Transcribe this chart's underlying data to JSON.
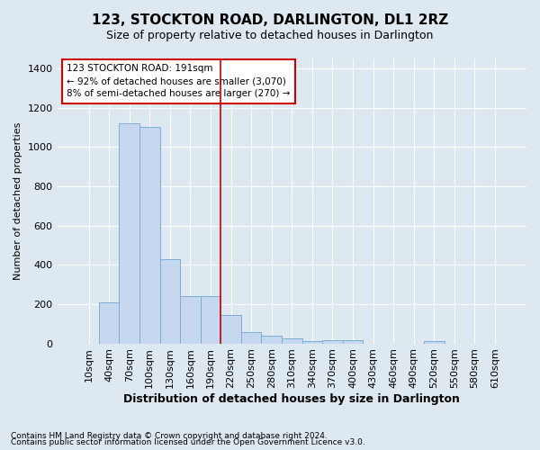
{
  "title": "123, STOCKTON ROAD, DARLINGTON, DL1 2RZ",
  "subtitle": "Size of property relative to detached houses in Darlington",
  "xlabel": "Distribution of detached houses by size in Darlington",
  "ylabel": "Number of detached properties",
  "footnote1": "Contains HM Land Registry data © Crown copyright and database right 2024.",
  "footnote2": "Contains public sector information licensed under the Open Government Licence v3.0.",
  "bar_labels": [
    "10sqm",
    "40sqm",
    "70sqm",
    "100sqm",
    "130sqm",
    "160sqm",
    "190sqm",
    "220sqm",
    "250sqm",
    "280sqm",
    "310sqm",
    "340sqm",
    "370sqm",
    "400sqm",
    "430sqm",
    "460sqm",
    "490sqm",
    "520sqm",
    "550sqm",
    "580sqm",
    "610sqm"
  ],
  "bar_values": [
    0,
    210,
    1120,
    1100,
    430,
    240,
    240,
    145,
    58,
    40,
    25,
    13,
    16,
    16,
    0,
    0,
    0,
    13,
    0,
    0,
    0
  ],
  "bar_color": "#c5d8ef",
  "bar_edge_color": "#7aaed6",
  "annotation_line1": "123 STOCKTON ROAD: 191sqm",
  "annotation_line2": "← 92% of detached houses are smaller (3,070)",
  "annotation_line3": "8% of semi-detached houses are larger (270) →",
  "annotation_box_color": "#ffffff",
  "annotation_box_edge_color": "#cc0000",
  "vline_color": "#cc0000",
  "vline_x": 6.5,
  "ylim": [
    0,
    1450
  ],
  "yticks": [
    0,
    200,
    400,
    600,
    800,
    1000,
    1200,
    1400
  ],
  "background_color": "#dde8f0",
  "plot_bg_color": "#dde8f0",
  "grid_color": "#ffffff",
  "title_fontsize": 11,
  "subtitle_fontsize": 9,
  "xlabel_fontsize": 9,
  "ylabel_fontsize": 8,
  "tick_fontsize": 8,
  "footnote_fontsize": 6.5
}
